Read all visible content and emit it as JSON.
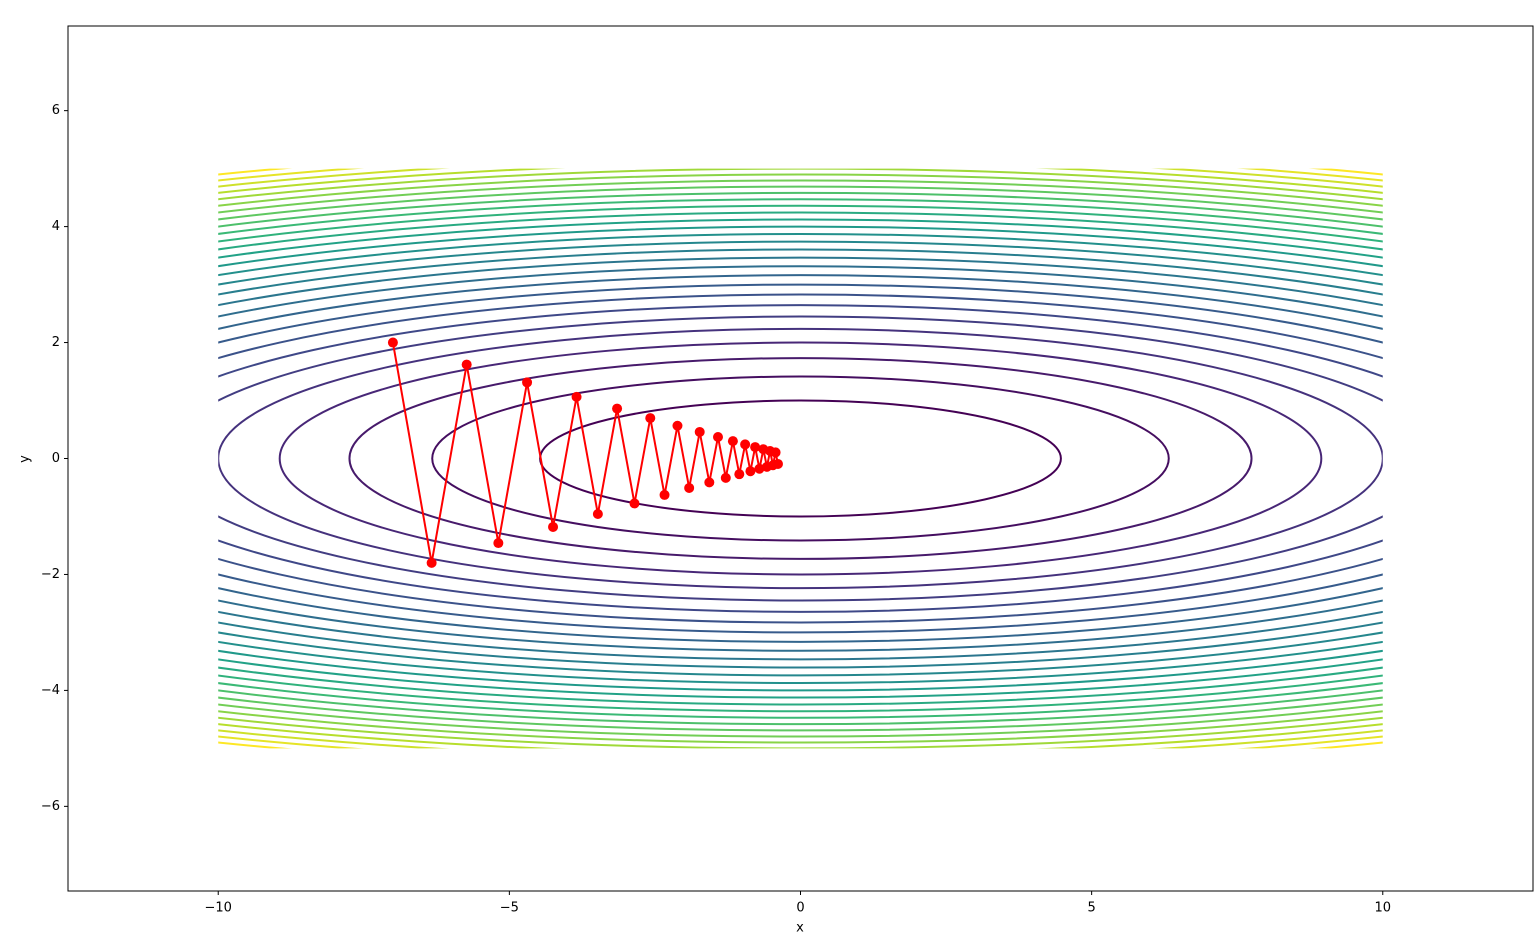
{
  "chart_data": {
    "type": "contour",
    "x_label": "x",
    "y_label": "y",
    "xlim": [
      -12.58,
      12.58
    ],
    "ylim": [
      -7.46,
      7.46
    ],
    "xticks": [
      {
        "value": -10,
        "label": "−10"
      },
      {
        "value": -5,
        "label": "−5"
      },
      0,
      5,
      10
    ],
    "yticks": [
      {
        "value": -6,
        "label": "−6"
      },
      {
        "value": -4,
        "label": "−4"
      },
      {
        "value": -2,
        "label": "−2"
      },
      0,
      2,
      4,
      6
    ],
    "function": {
      "x2_coef": 0.05,
      "y2_coef": 1
    },
    "domain": {
      "x": [
        -10,
        10
      ],
      "y": [
        -5,
        5
      ]
    },
    "levels": [
      1,
      2,
      3,
      4,
      5,
      6,
      7,
      8,
      9,
      10,
      11,
      12,
      13,
      14,
      15,
      16,
      17,
      18,
      19,
      20,
      21,
      22,
      23,
      24,
      25,
      26,
      27,
      28,
      29
    ],
    "colormap": "viridis",
    "series": [
      {
        "color": "#ff0000",
        "x": [
          -7,
          -6.335,
          -5.733,
          -5.189,
          -4.696,
          -4.25,
          -3.846,
          -3.48,
          -3.15,
          -2.851,
          -2.58,
          -2.335,
          -2.113,
          -1.912,
          -1.731,
          -1.566,
          -1.417,
          -1.283,
          -1.161,
          -1.051,
          -0.951,
          -0.86,
          -0.779,
          -0.705,
          -0.638,
          -0.577,
          -0.522,
          -0.473,
          -0.428,
          -0.387
        ],
        "values": [
          2,
          -1.8,
          1.62,
          -1.458,
          1.312,
          -1.181,
          1.063,
          -0.957,
          0.861,
          -0.775,
          0.697,
          -0.628,
          0.565,
          -0.508,
          0.458,
          -0.412,
          0.371,
          -0.334,
          0.3,
          -0.27,
          0.243,
          -0.219,
          0.197,
          -0.177,
          0.16,
          -0.144,
          0.129,
          -0.116,
          0.105,
          -0.094
        ]
      }
    ]
  }
}
